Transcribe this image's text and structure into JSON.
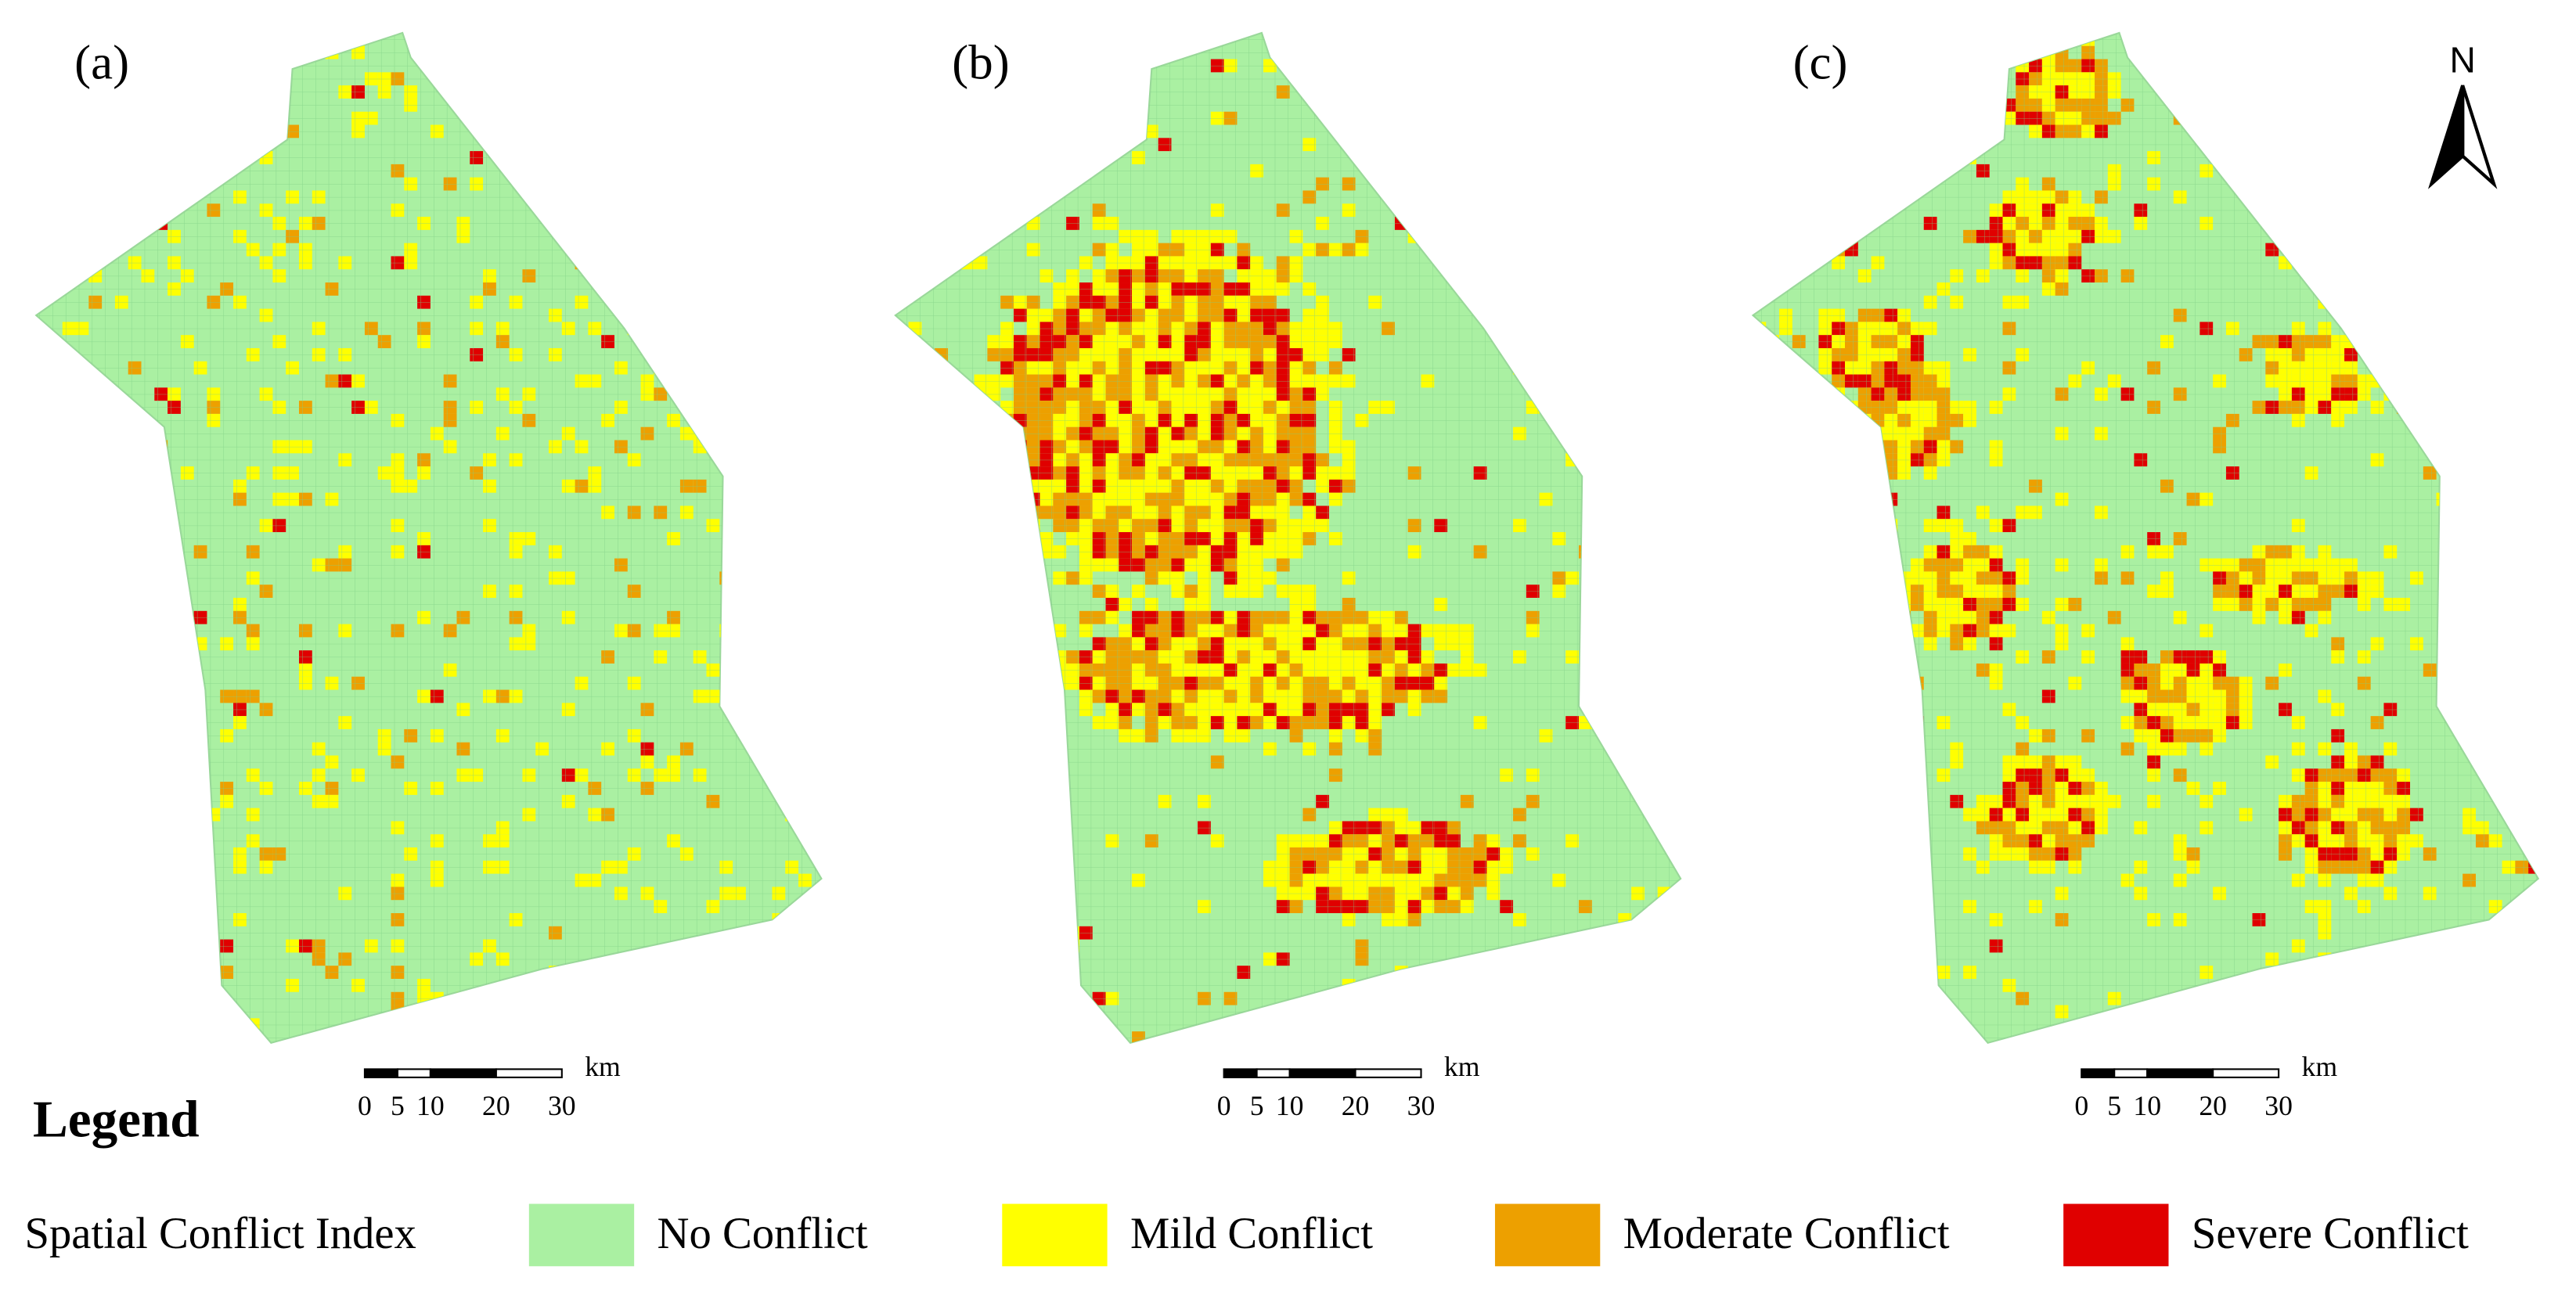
{
  "panels": [
    {
      "label": "(a)"
    },
    {
      "label": "(b)"
    },
    {
      "label": "(c)"
    }
  ],
  "north_label": "N",
  "scale_bar": {
    "unit": "km",
    "ticks": [
      0,
      5,
      10,
      20,
      30
    ]
  },
  "legend": {
    "title": "Legend",
    "index_label": "Spatial Conflict Index",
    "items": [
      {
        "label": "No Conflict",
        "color": "#aaf0a2"
      },
      {
        "label": "Mild Conflict",
        "color": "#ffff00"
      },
      {
        "label": "Moderate Conflict",
        "color": "#eda000"
      },
      {
        "label": "Severe Conflict",
        "color": "#e00000"
      }
    ]
  }
}
